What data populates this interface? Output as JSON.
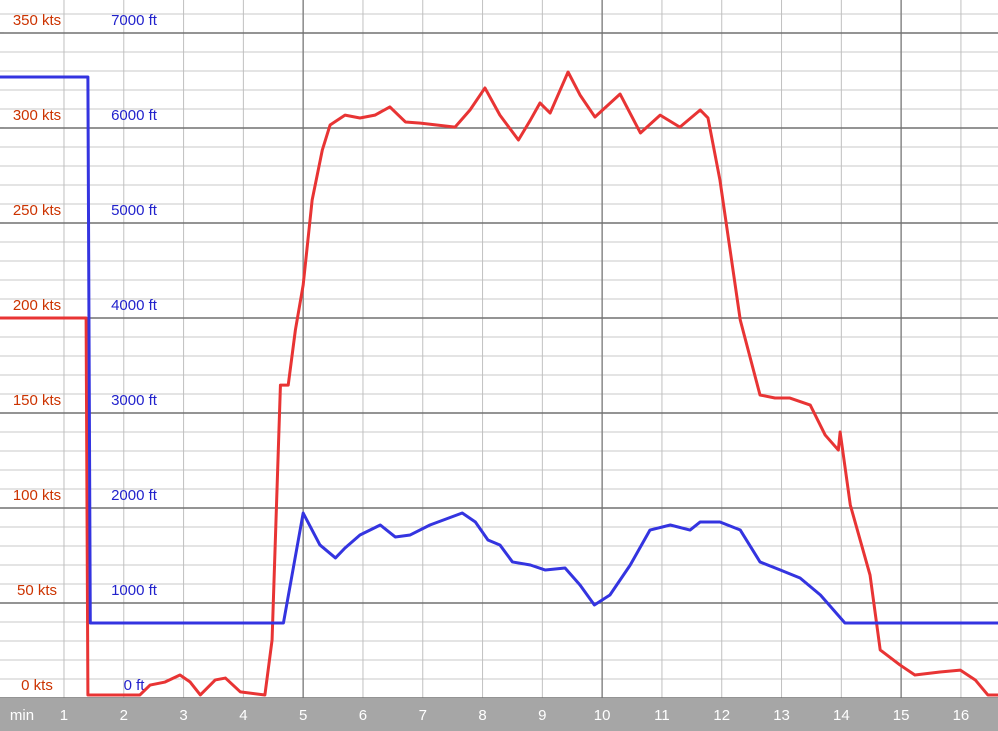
{
  "chart_data": {
    "type": "line",
    "xlabel": "min",
    "xlim": [
      -0.07,
      16.62
    ],
    "xticks": [
      1,
      2,
      3,
      4,
      5,
      6,
      7,
      8,
      9,
      10,
      11,
      12,
      13,
      14,
      15,
      16
    ],
    "ylim": [
      0,
      367.4
    ],
    "yticks": [
      {
        "value": 0,
        "label": "0 kts"
      },
      {
        "value": 50,
        "label": "50 kts"
      },
      {
        "value": 100,
        "label": "100 kts"
      },
      {
        "value": 150,
        "label": "150 kts"
      },
      {
        "value": 200,
        "label": "200 kts"
      },
      {
        "value": 250,
        "label": "250 kts"
      },
      {
        "value": 300,
        "label": "300 kts"
      },
      {
        "value": 350,
        "label": "350 kts"
      }
    ],
    "y2lim": [
      0,
      7347
    ],
    "y2ticks": [
      {
        "value": 0,
        "label": "0 ft"
      },
      {
        "value": 1000,
        "label": "1000 ft"
      },
      {
        "value": 2000,
        "label": "2000 ft"
      },
      {
        "value": 3000,
        "label": "3000 ft"
      },
      {
        "value": 4000,
        "label": "4000 ft"
      },
      {
        "value": 5000,
        "label": "5000 ft"
      },
      {
        "value": 6000,
        "label": "6000 ft"
      },
      {
        "value": 7000,
        "label": "7000 ft"
      }
    ],
    "grid": true,
    "minor_grid": 10,
    "series": [
      {
        "color": "#e83434",
        "label_color": "#cc3300",
        "x": [
          -0.07,
          1.37,
          1.4,
          2.27,
          2.44,
          2.69,
          2.94,
          3.11,
          3.28,
          3.53,
          3.7,
          3.95,
          4.36,
          4.48,
          4.62,
          4.75,
          4.87,
          5.0,
          5.15,
          5.32,
          5.45,
          5.7,
          5.95,
          6.2,
          6.45,
          6.71,
          6.96,
          7.54,
          7.79,
          8.04,
          8.29,
          8.6,
          8.8,
          8.96,
          9.13,
          9.43,
          9.63,
          9.88,
          10.3,
          10.64,
          10.97,
          11.3,
          11.64,
          11.77,
          11.97,
          12.31,
          12.64,
          12.89,
          13.14,
          13.48,
          13.73,
          13.95,
          13.98,
          14.15,
          14.48,
          14.65,
          14.98,
          15.23,
          15.65,
          15.99,
          16.24,
          16.45,
          16.62
        ],
        "y": [
          200,
          200,
          1.6,
          1.6,
          6.8,
          8.4,
          12.1,
          8.4,
          1.6,
          9.5,
          10.5,
          3.2,
          1.6,
          30.5,
          164.7,
          164.7,
          193.7,
          217.4,
          262.1,
          288.4,
          301.6,
          306.8,
          305.3,
          306.8,
          311.1,
          303.2,
          302.6,
          300.5,
          309.5,
          321.1,
          306.8,
          293.7,
          304.2,
          313.2,
          307.9,
          329.5,
          317.4,
          305.8,
          317.9,
          297.4,
          306.8,
          300.5,
          309.5,
          305.3,
          272.6,
          198.9,
          159.5,
          157.9,
          157.9,
          154.2,
          138.4,
          130.5,
          140.0,
          101.6,
          64.7,
          25.3,
          17.4,
          12.1,
          13.7,
          14.7,
          9.5,
          1.6,
          1.6
        ]
      },
      {
        "color": "#3434e0",
        "label_color": "#2222cc",
        "axis": "y2",
        "x": [
          -0.07,
          1.4,
          1.44,
          4.67,
          5.0,
          5.28,
          5.54,
          5.7,
          5.95,
          6.29,
          6.54,
          6.79,
          7.12,
          7.66,
          7.88,
          8.09,
          8.29,
          8.5,
          8.8,
          9.05,
          9.38,
          9.63,
          9.87,
          10.13,
          10.47,
          10.8,
          11.14,
          11.47,
          11.64,
          11.97,
          12.31,
          12.64,
          12.98,
          13.31,
          13.65,
          14.06,
          16.62
        ],
        "y": [
          6537,
          6537,
          789,
          789,
          1947,
          1611,
          1474,
          1579,
          1716,
          1821,
          1695,
          1716,
          1821,
          1947,
          1853,
          1663,
          1611,
          1432,
          1400,
          1347,
          1368,
          1189,
          979,
          1084,
          1400,
          1768,
          1821,
          1768,
          1853,
          1853,
          1768,
          1432,
          1347,
          1263,
          1084,
          789,
          789
        ]
      }
    ]
  }
}
